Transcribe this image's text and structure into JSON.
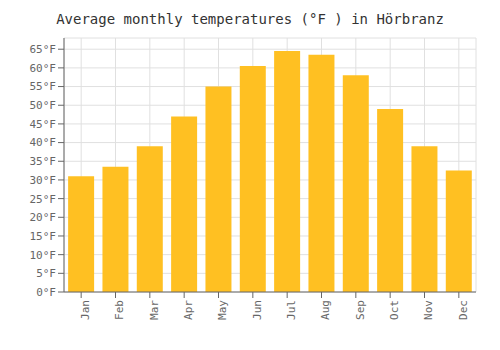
{
  "chart_data": {
    "type": "bar",
    "title": "Average monthly temperatures (°F ) in Hörbranz",
    "categories": [
      "Jan",
      "Feb",
      "Mar",
      "Apr",
      "May",
      "Jun",
      "Jul",
      "Aug",
      "Sep",
      "Oct",
      "Nov",
      "Dec"
    ],
    "values": [
      31,
      33.5,
      39,
      47,
      55,
      60.5,
      64.5,
      63.5,
      58,
      49,
      39,
      32.5
    ],
    "color": "#FFC022",
    "ylim": [
      0,
      68
    ],
    "yticks": [
      {
        "value": 0,
        "label": "0°F"
      },
      {
        "value": 5,
        "label": "5°F"
      },
      {
        "value": 10,
        "label": "10°F"
      },
      {
        "value": 15,
        "label": "15°F"
      },
      {
        "value": 20,
        "label": "20°F"
      },
      {
        "value": 25,
        "label": "25°F"
      },
      {
        "value": 30,
        "label": "30°F"
      },
      {
        "value": 35,
        "label": "35°F"
      },
      {
        "value": 40,
        "label": "40°F"
      },
      {
        "value": 45,
        "label": "45°F"
      },
      {
        "value": 50,
        "label": "50°F"
      },
      {
        "value": 55,
        "label": "55°F"
      },
      {
        "value": 60,
        "label": "60°F"
      },
      {
        "value": 65,
        "label": "65°F"
      }
    ],
    "grid": true
  }
}
